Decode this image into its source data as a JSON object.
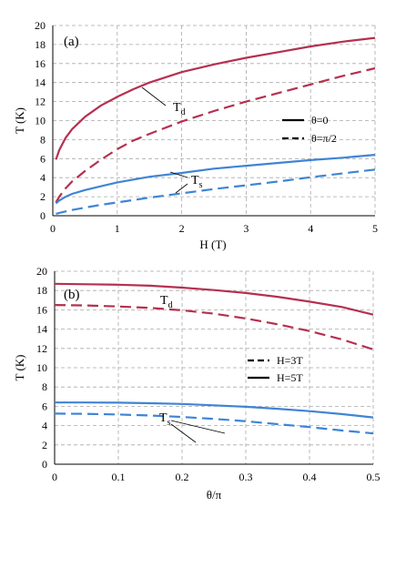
{
  "colors": {
    "red": "#b5304f",
    "blue": "#3f84d6",
    "grid": "#a9a9a9",
    "axis": "#000000"
  },
  "chart_data": [
    {
      "type": "line",
      "panel_label": "(a)",
      "xlabel": "H (T)",
      "ylabel": "T (K)",
      "xlim": [
        0,
        5
      ],
      "ylim": [
        0,
        20
      ],
      "xticks": [
        "0",
        "1",
        "2",
        "3",
        "4",
        "5"
      ],
      "yticks": [
        "0",
        "2",
        "4",
        "6",
        "8",
        "10",
        "12",
        "14",
        "16",
        "18",
        "20"
      ],
      "grid": true,
      "curve_labels": {
        "Td": {
          "main": "T",
          "sub": "d"
        },
        "Ts": {
          "main": "T",
          "sub": "s"
        }
      },
      "legend": {
        "position": "middle-right",
        "entries": [
          {
            "label": "θ=0",
            "style": "solid"
          },
          {
            "label": "θ=π/2",
            "style": "dashed"
          }
        ]
      },
      "x": [
        0.05,
        0.1,
        0.2,
        0.3,
        0.5,
        0.75,
        1.0,
        1.25,
        1.5,
        2.0,
        2.5,
        3.0,
        3.5,
        4.0,
        4.5,
        5.0
      ],
      "series": [
        {
          "color": "red",
          "style": "solid",
          "values": [
            5.9,
            6.9,
            8.2,
            9.1,
            10.4,
            11.6,
            12.5,
            13.3,
            14.0,
            15.1,
            15.9,
            16.6,
            17.2,
            17.8,
            18.3,
            18.7
          ]
        },
        {
          "color": "red",
          "style": "dashed",
          "values": [
            1.4,
            2.0,
            2.9,
            3.6,
            4.7,
            5.9,
            7.0,
            7.9,
            8.6,
            9.9,
            11.0,
            12.0,
            12.9,
            13.8,
            14.7,
            15.5
          ]
        },
        {
          "color": "blue",
          "style": "solid",
          "values": [
            1.3,
            1.6,
            2.0,
            2.3,
            2.7,
            3.1,
            3.5,
            3.8,
            4.1,
            4.5,
            4.95,
            5.25,
            5.55,
            5.85,
            6.1,
            6.4
          ]
        },
        {
          "color": "blue",
          "style": "dashed",
          "values": [
            0.2,
            0.3,
            0.45,
            0.6,
            0.85,
            1.15,
            1.4,
            1.65,
            1.9,
            2.35,
            2.8,
            3.2,
            3.6,
            4.05,
            4.45,
            4.85
          ]
        }
      ]
    },
    {
      "type": "line",
      "panel_label": "(b)",
      "xlabel": "θ/π",
      "ylabel": "T (K)",
      "xlim": [
        0,
        0.5
      ],
      "ylim": [
        0,
        20
      ],
      "xticks": [
        "0",
        "0.1",
        "0.2",
        "0.3",
        "0.4",
        "0.5"
      ],
      "yticks": [
        "0",
        "2",
        "4",
        "6",
        "8",
        "10",
        "12",
        "14",
        "16",
        "18",
        "20"
      ],
      "grid": true,
      "curve_labels": {
        "Td": {
          "main": "T",
          "sub": "d"
        },
        "Ts": {
          "main": "T",
          "sub": "s"
        }
      },
      "legend": {
        "position": "middle-right",
        "entries": [
          {
            "label": "H=3T",
            "style": "dashed"
          },
          {
            "label": "H=5T",
            "style": "solid"
          }
        ]
      },
      "x": [
        0,
        0.05,
        0.1,
        0.15,
        0.2,
        0.25,
        0.3,
        0.35,
        0.4,
        0.45,
        0.5
      ],
      "series": [
        {
          "color": "red",
          "style": "solid",
          "values": [
            18.7,
            18.65,
            18.6,
            18.5,
            18.3,
            18.05,
            17.75,
            17.35,
            16.85,
            16.3,
            15.5
          ]
        },
        {
          "color": "red",
          "style": "dashed",
          "values": [
            16.5,
            16.45,
            16.35,
            16.2,
            15.95,
            15.6,
            15.1,
            14.5,
            13.8,
            12.95,
            11.9
          ]
        },
        {
          "color": "blue",
          "style": "solid",
          "values": [
            6.4,
            6.4,
            6.38,
            6.32,
            6.25,
            6.1,
            5.95,
            5.75,
            5.5,
            5.2,
            4.85
          ]
        },
        {
          "color": "blue",
          "style": "dashed",
          "values": [
            5.25,
            5.22,
            5.15,
            5.05,
            4.9,
            4.7,
            4.45,
            4.15,
            3.85,
            3.5,
            3.2
          ]
        }
      ]
    }
  ]
}
